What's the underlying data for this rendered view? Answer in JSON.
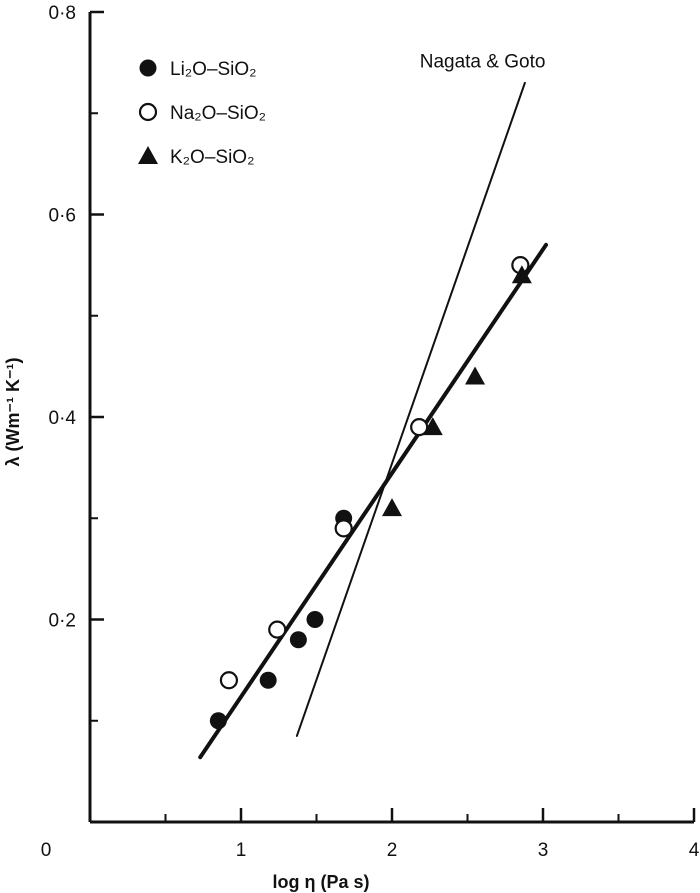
{
  "chart_data": {
    "type": "scatter",
    "xlabel": "log η (Pa s)",
    "ylabel": "λ (Wm⁻¹ K⁻¹)",
    "xlim": [
      0,
      4
    ],
    "ylim": [
      0,
      0.8
    ],
    "x_ticks": [
      {
        "value": 0,
        "label": "0"
      },
      {
        "value": 1,
        "label": "1"
      },
      {
        "value": 2,
        "label": "2"
      },
      {
        "value": 3,
        "label": "3"
      },
      {
        "value": 4,
        "label": "4"
      }
    ],
    "y_ticks": [
      {
        "value": 0.2,
        "label": "0·2"
      },
      {
        "value": 0.4,
        "label": "0·4"
      },
      {
        "value": 0.6,
        "label": "0·6"
      },
      {
        "value": 0.8,
        "label": "0·8"
      }
    ],
    "legend_position": "top-left",
    "series": [
      {
        "name": "Li₂O–SiO₂",
        "marker": "filled-circle",
        "points": [
          {
            "x": 0.85,
            "y": 0.1
          },
          {
            "x": 1.18,
            "y": 0.14
          },
          {
            "x": 1.38,
            "y": 0.18
          },
          {
            "x": 1.49,
            "y": 0.2
          },
          {
            "x": 1.68,
            "y": 0.3
          }
        ]
      },
      {
        "name": "Na₂O–SiO₂",
        "marker": "open-circle",
        "points": [
          {
            "x": 0.92,
            "y": 0.14
          },
          {
            "x": 1.24,
            "y": 0.19
          },
          {
            "x": 1.68,
            "y": 0.29
          },
          {
            "x": 2.18,
            "y": 0.39
          },
          {
            "x": 2.85,
            "y": 0.55
          }
        ]
      },
      {
        "name": "K₂O–SiO₂",
        "marker": "filled-triangle",
        "points": [
          {
            "x": 2.0,
            "y": 0.31
          },
          {
            "x": 2.27,
            "y": 0.39
          },
          {
            "x": 2.55,
            "y": 0.44
          },
          {
            "x": 2.86,
            "y": 0.54
          }
        ]
      }
    ],
    "lines": [
      {
        "kind": "fit",
        "style": "thick",
        "x": [
          0.73,
          3.02
        ],
        "y": [
          0.064,
          0.57
        ]
      },
      {
        "kind": "reference",
        "style": "thin",
        "x": [
          1.37,
          2.88
        ],
        "y": [
          0.085,
          0.73
        ]
      }
    ],
    "annotations": [
      {
        "text": "Nagata & Goto",
        "x": 2.6,
        "y": 0.745
      }
    ]
  }
}
